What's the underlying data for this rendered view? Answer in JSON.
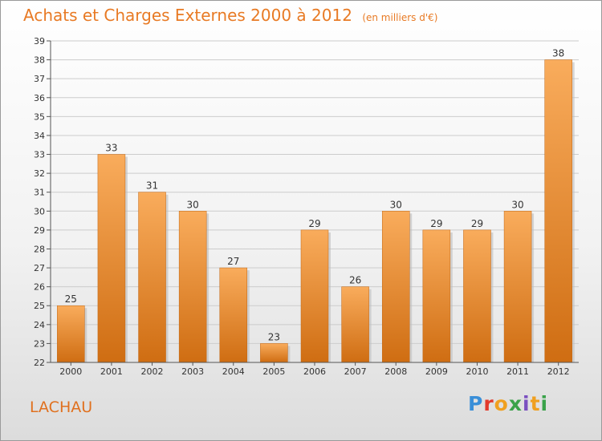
{
  "header": {
    "title": "Achats et Charges Externes 2000 à 2012",
    "subtitle": "(en milliers d'€)"
  },
  "footer": {
    "commune": "LACHAU",
    "logo_text": "Proxiti"
  },
  "colors": {
    "title": "#e87a24",
    "bar_light": "#f8a857",
    "bar_dark": "#d06f14",
    "grid": "#cccccc",
    "axis": "#555555"
  },
  "chart_data": {
    "type": "bar",
    "title": "Achats et Charges Externes 2000 à 2012",
    "subtitle": "(en milliers d'€)",
    "xlabel": "",
    "ylabel": "",
    "categories": [
      "2000",
      "2001",
      "2002",
      "2003",
      "2004",
      "2005",
      "2006",
      "2007",
      "2008",
      "2009",
      "2010",
      "2011",
      "2012"
    ],
    "values": [
      25,
      33,
      31,
      30,
      27,
      23,
      29,
      26,
      30,
      29,
      29,
      30,
      38
    ],
    "ylim": [
      22,
      39
    ],
    "yticks": [
      22,
      23,
      24,
      25,
      26,
      27,
      28,
      29,
      30,
      31,
      32,
      33,
      34,
      35,
      36,
      37,
      38,
      39
    ],
    "grid": true,
    "legend": "none",
    "data_labels": true
  }
}
